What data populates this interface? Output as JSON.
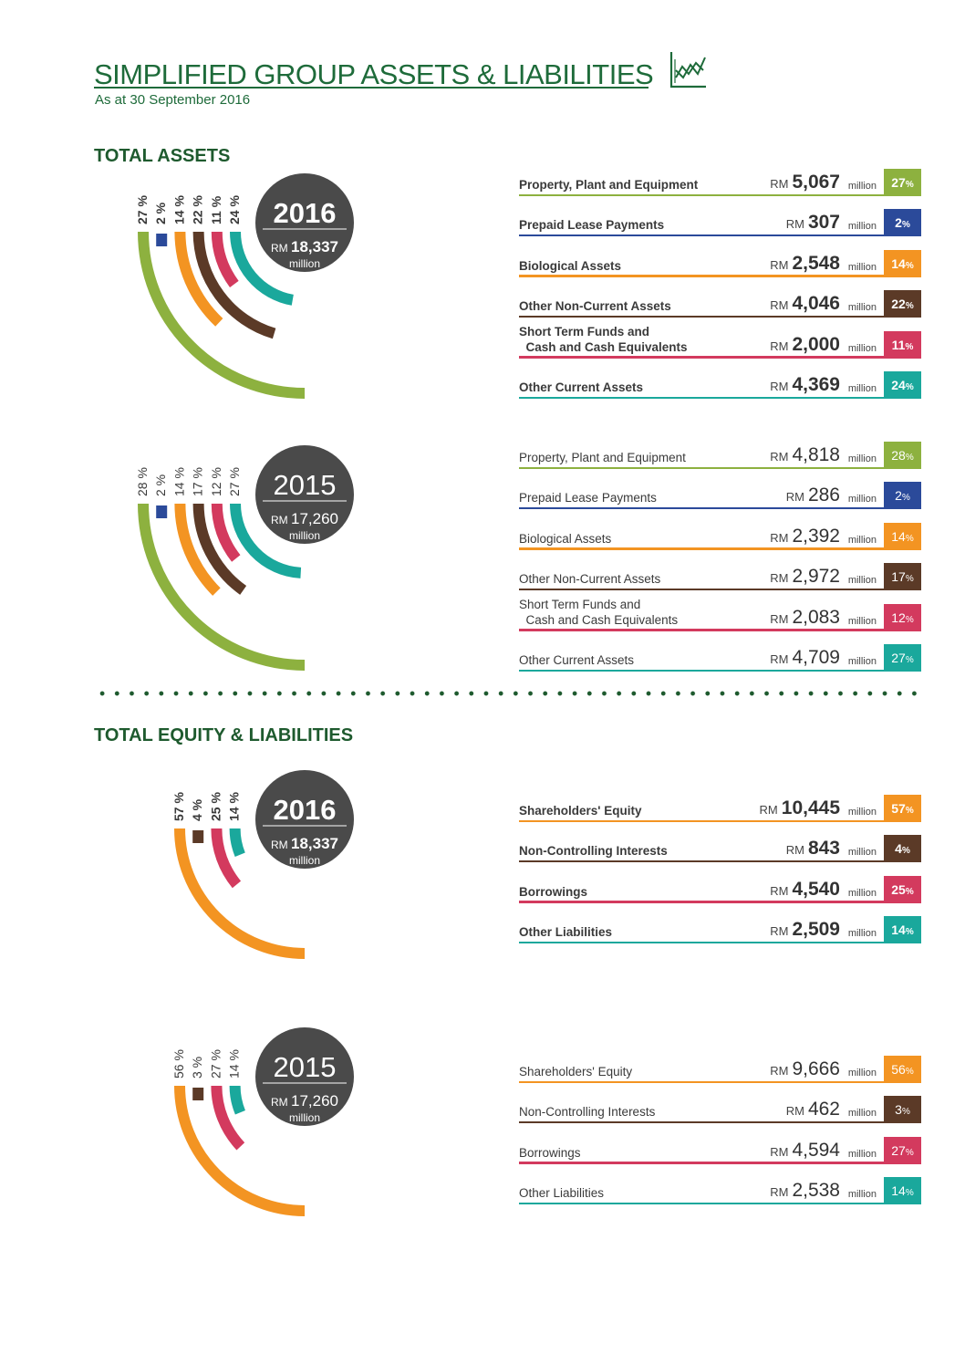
{
  "header": {
    "title": "SIMPLIFIED GROUP ASSETS & LIABILITIES",
    "subtitle": "As at 30 September 2016",
    "icon": "line-chart-icon"
  },
  "sections": {
    "assets": "TOTAL ASSETS",
    "equity": "TOTAL EQUITY & LIABILITIES"
  },
  "colors": {
    "ppe": "#8db13f",
    "prepaid": "#2b4a9a",
    "bio": "#f39422",
    "other_nca": "#5b3a27",
    "cash": "#d33a5e",
    "other_ca": "#1aa89c",
    "circle": "#4a4a4a",
    "brand_green": "#1e6b3a"
  },
  "common": {
    "rm": "RM",
    "million": "million",
    "pct_sign": "%"
  },
  "chart_data": [
    {
      "type": "pie",
      "section": "assets",
      "year": "2016",
      "total": "18,337",
      "unit": "million",
      "bold": true,
      "items": [
        {
          "label": "Property, Plant and Equipment",
          "value": "5,067",
          "pct": 27,
          "pct_label": "27 %",
          "color": "#8db13f"
        },
        {
          "label": "Prepaid Lease Payments",
          "value": "307",
          "pct": 2,
          "pct_label": "2 %",
          "color": "#2b4a9a"
        },
        {
          "label": "Biological Assets",
          "value": "2,548",
          "pct": 14,
          "pct_label": "14 %",
          "color": "#f39422"
        },
        {
          "label": "Other Non-Current Assets",
          "value": "4,046",
          "pct": 22,
          "pct_label": "22 %",
          "color": "#5b3a27"
        },
        {
          "label": "Short Term Funds and\n  Cash and Cash Equivalents",
          "value": "2,000",
          "pct": 11,
          "pct_label": "11 %",
          "color": "#d33a5e"
        },
        {
          "label": "Other Current Assets",
          "value": "4,369",
          "pct": 24,
          "pct_label": "24 %",
          "color": "#1aa89c"
        }
      ]
    },
    {
      "type": "pie",
      "section": "assets",
      "year": "2015",
      "total": "17,260",
      "unit": "million",
      "bold": false,
      "items": [
        {
          "label": "Property, Plant and Equipment",
          "value": "4,818",
          "pct": 28,
          "pct_label": "28 %",
          "color": "#8db13f"
        },
        {
          "label": "Prepaid Lease Payments",
          "value": "286",
          "pct": 2,
          "pct_label": "2 %",
          "color": "#2b4a9a"
        },
        {
          "label": "Biological Assets",
          "value": "2,392",
          "pct": 14,
          "pct_label": "14 %",
          "color": "#f39422"
        },
        {
          "label": "Other Non-Current Assets",
          "value": "2,972",
          "pct": 17,
          "pct_label": "17 %",
          "color": "#5b3a27"
        },
        {
          "label": "Short Term Funds and\n  Cash and Cash Equivalents",
          "value": "2,083",
          "pct": 12,
          "pct_label": "12 %",
          "color": "#d33a5e"
        },
        {
          "label": "Other Current Assets",
          "value": "4,709",
          "pct": 27,
          "pct_label": "27 %",
          "color": "#1aa89c"
        }
      ]
    },
    {
      "type": "pie",
      "section": "equity",
      "year": "2016",
      "total": "18,337",
      "unit": "million",
      "bold": true,
      "items": [
        {
          "label": "Shareholders' Equity",
          "value": "10,445",
          "pct": 57,
          "pct_label": "57 %",
          "color": "#f39422"
        },
        {
          "label": "Non-Controlling Interests",
          "value": "843",
          "pct": 4,
          "pct_label": "4 %",
          "color": "#5b3a27"
        },
        {
          "label": "Borrowings",
          "value": "4,540",
          "pct": 25,
          "pct_label": "25 %",
          "color": "#d33a5e"
        },
        {
          "label": "Other Liabilities",
          "value": "2,509",
          "pct": 14,
          "pct_label": "14 %",
          "color": "#1aa89c"
        }
      ]
    },
    {
      "type": "pie",
      "section": "equity",
      "year": "2015",
      "total": "17,260",
      "unit": "million",
      "bold": false,
      "items": [
        {
          "label": "Shareholders' Equity",
          "value": "9,666",
          "pct": 56,
          "pct_label": "56 %",
          "color": "#f39422"
        },
        {
          "label": "Non-Controlling Interests",
          "value": "462",
          "pct": 3,
          "pct_label": "3 %",
          "color": "#5b3a27"
        },
        {
          "label": "Borrowings",
          "value": "4,594",
          "pct": 27,
          "pct_label": "27 %",
          "color": "#d33a5e"
        },
        {
          "label": "Other Liabilities",
          "value": "2,538",
          "pct": 14,
          "pct_label": "14 %",
          "color": "#1aa89c"
        }
      ]
    }
  ]
}
